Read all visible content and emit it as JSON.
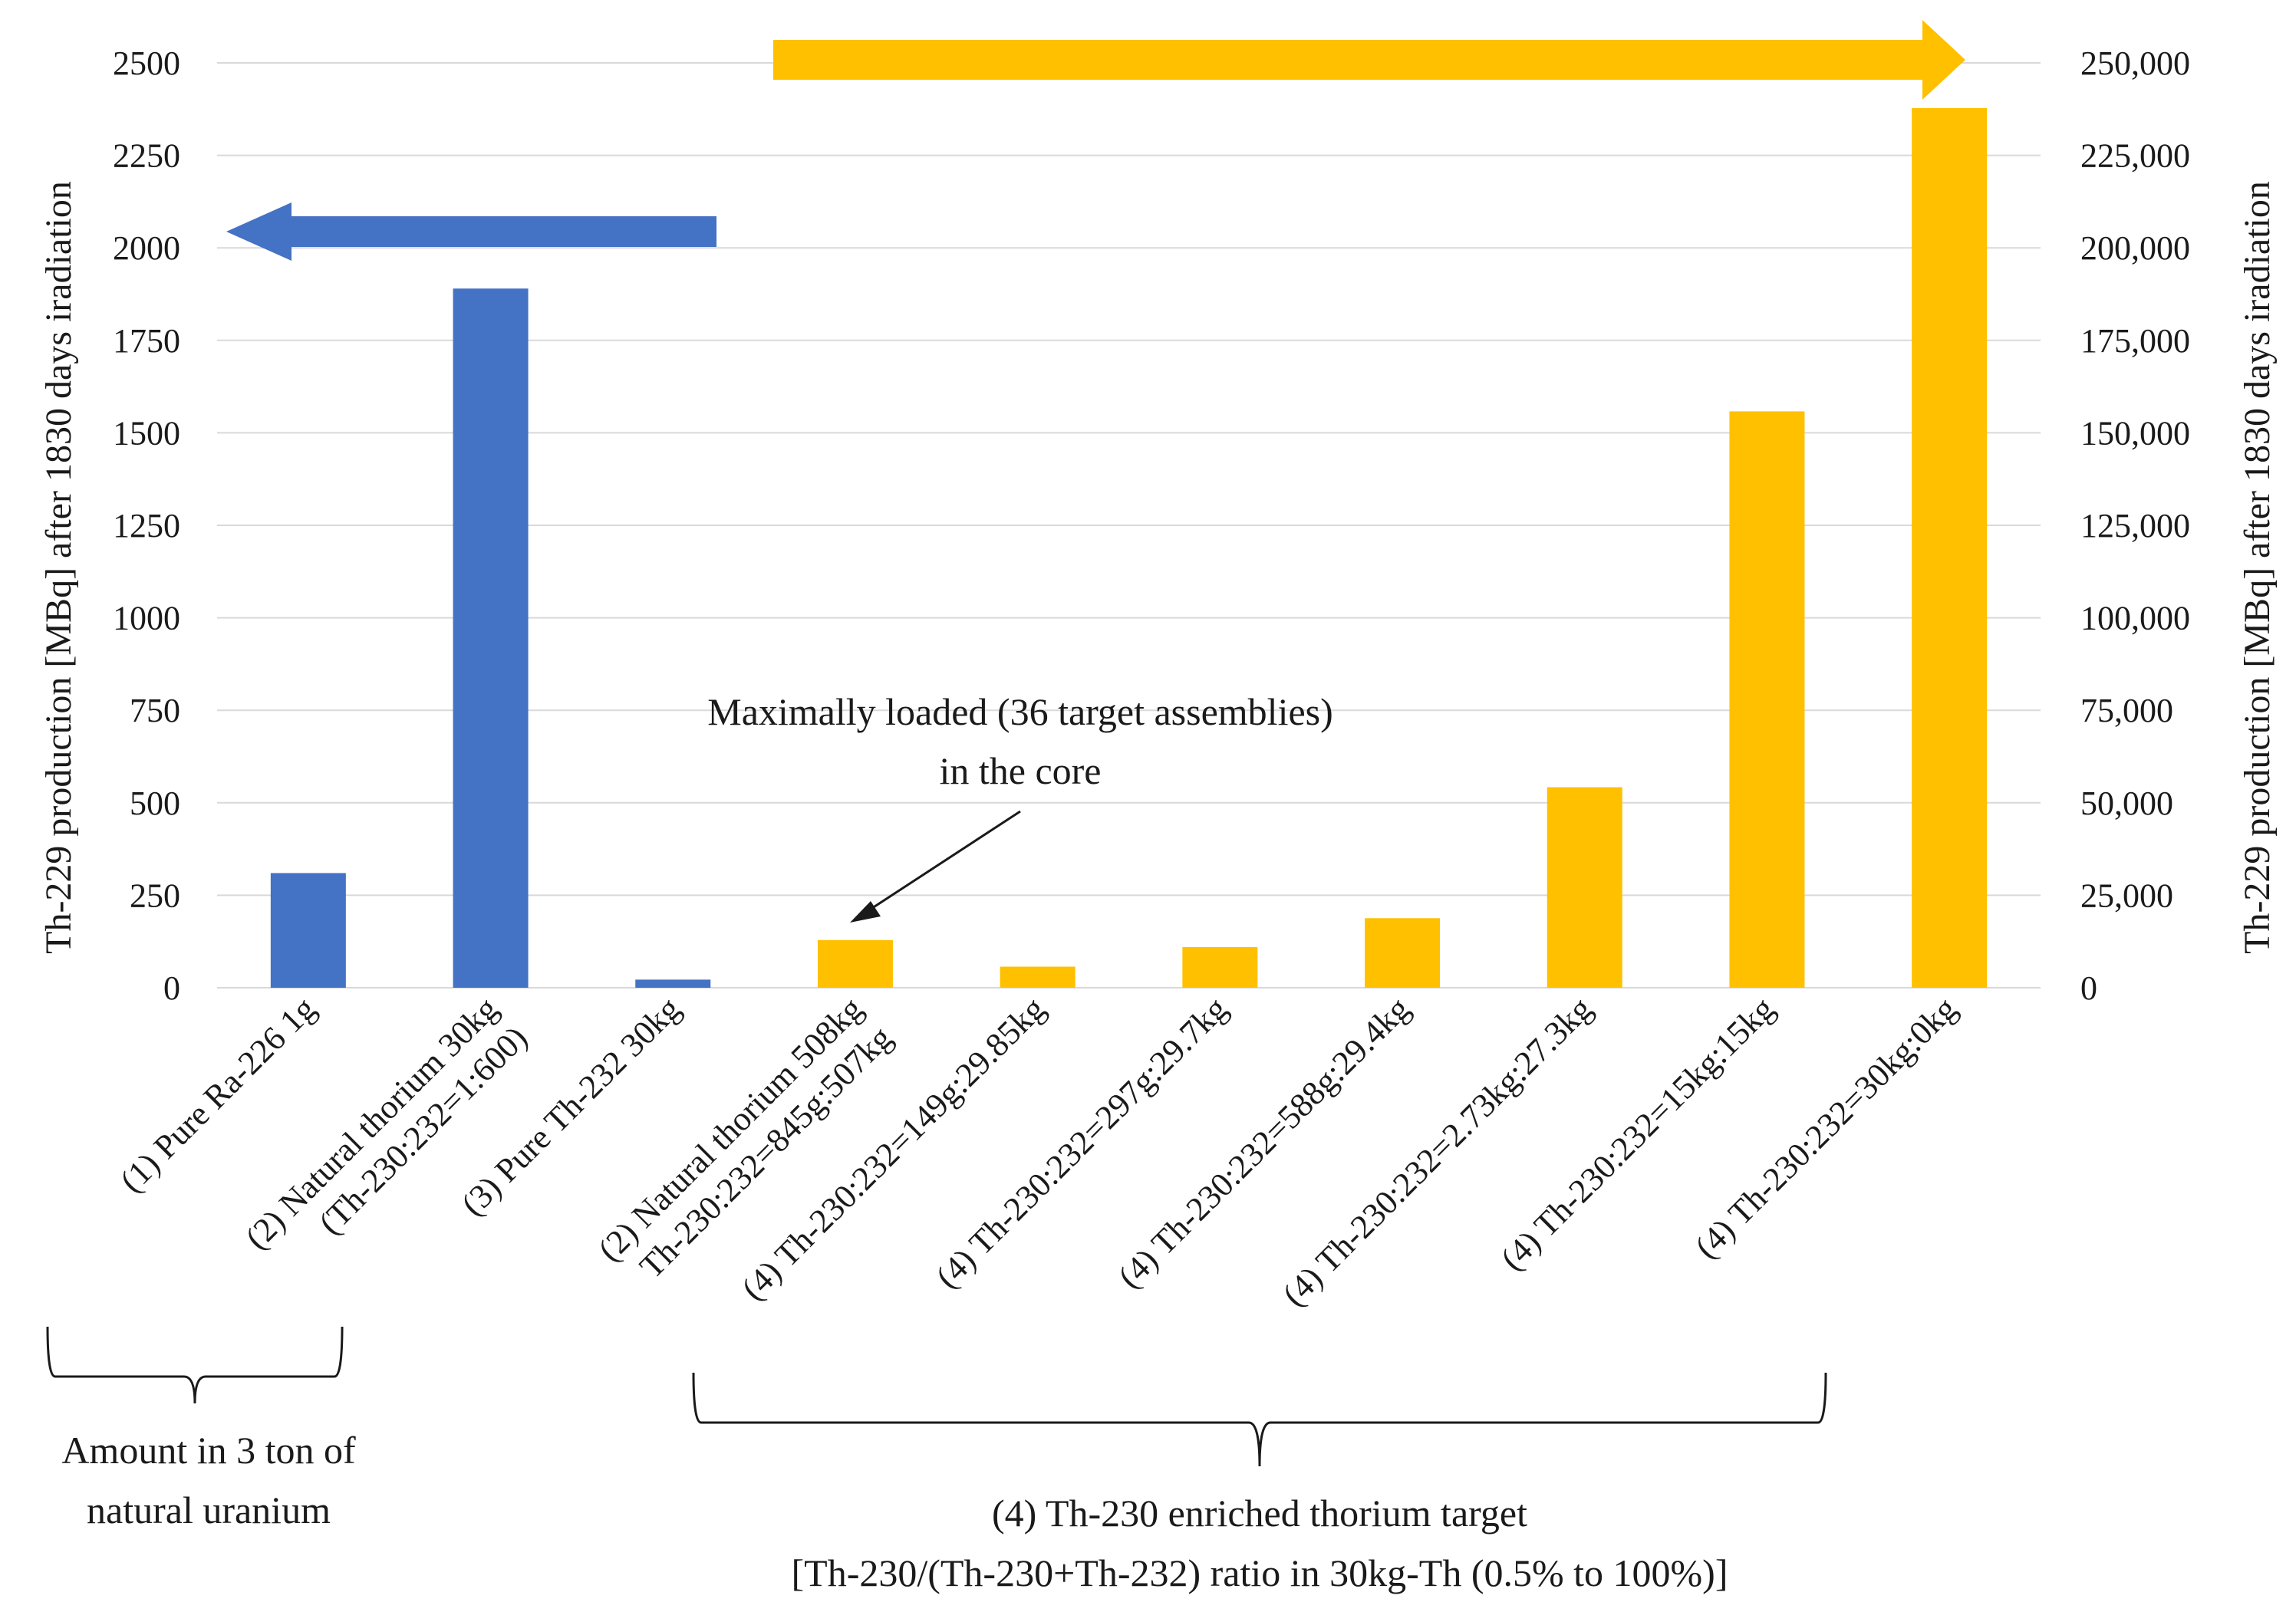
{
  "chart_data": {
    "type": "bar",
    "categories": [
      [
        "(1) Pure Ra-226 1g"
      ],
      [
        "(2) Natural thorium  30kg",
        "(Th-230:232=1:600)"
      ],
      [
        "(3) Pure Th-232 30kg"
      ],
      [
        "(2) Natural thorium 508kg",
        "Th-230:232=845g:507kg"
      ],
      [
        "(4) Th-230:232=149g:29.85kg"
      ],
      [
        "(4) Th-230:232=297g:29.7kg"
      ],
      [
        "(4) Th-230:232=588g:29.4kg"
      ],
      [
        "(4) Th-230:232=2.73kg:27.3kg"
      ],
      [
        "(4) Th-230:232=15kg:15kg"
      ],
      [
        "(4) Th-230:232=30kg:0kg"
      ]
    ],
    "series": [
      {
        "name": "Left axis",
        "axis": "left",
        "color": "#4472C4",
        "points": [
          {
            "index": 0,
            "value": 310
          },
          {
            "index": 1,
            "value": 1890
          },
          {
            "index": 2,
            "value": 22
          }
        ]
      },
      {
        "name": "Right axis",
        "axis": "right",
        "color": "#FFC000",
        "points": [
          {
            "index": 3,
            "value": 12900
          },
          {
            "index": 4,
            "value": 5700
          },
          {
            "index": 5,
            "value": 11000
          },
          {
            "index": 6,
            "value": 18800
          },
          {
            "index": 7,
            "value": 54200
          },
          {
            "index": 8,
            "value": 155800
          },
          {
            "index": 9,
            "value": 237800
          }
        ]
      }
    ],
    "ylabel": "Th-229 production [MBq] after 1830 days iradiation",
    "y2label": "Th-229 production [MBq] after 1830 days iradiation",
    "ylim": [
      0,
      2500
    ],
    "y2lim": [
      0,
      250000
    ],
    "yticks": [
      "0",
      "250",
      "500",
      "750",
      "1000",
      "1250",
      "1500",
      "1750",
      "2000",
      "2250",
      "2500"
    ],
    "y2ticks": [
      "0",
      "25,000",
      "50,000",
      "75,000",
      "100,000",
      "125,000",
      "150,000",
      "175,000",
      "200,000",
      "225,000",
      "250,000"
    ],
    "grid": true,
    "annotations": {
      "max_loaded": [
        "Maximally  loaded  (36 target assemblies)",
        "in the core"
      ],
      "group1": [
        "Amount  in 3 ton of",
        "natural  uranium"
      ],
      "group2": [
        "(4) Th-230 enriched thorium  target",
        "[Th-230/(Th-230+Th-232)  ratio in 30kg-Th  (0.5% to 100%)]"
      ]
    },
    "colors": {
      "blue": "#4472C4",
      "gold": "#FFC000",
      "grid": "#d9d9d9"
    }
  }
}
